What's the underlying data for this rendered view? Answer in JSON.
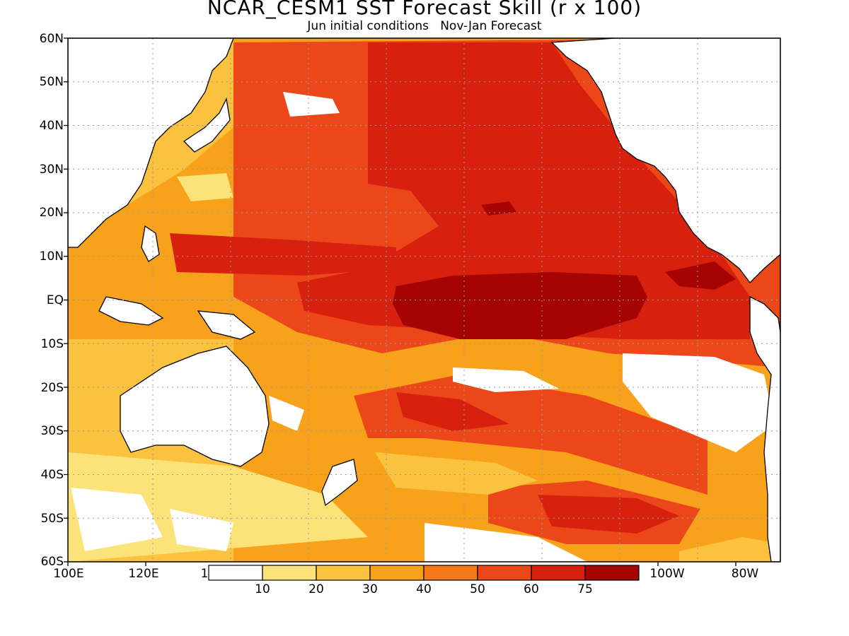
{
  "title": "NCAR_CESM1 SST Forecast Skill (r x 100)",
  "subtitle": "Jun initial conditions   Nov-Jan Forecast",
  "y_axis_labels": [
    "60N",
    "50N",
    "40N",
    "30N",
    "20N",
    "10N",
    "EQ",
    "10S",
    "20S",
    "30S",
    "40S",
    "50S",
    "60S"
  ],
  "x_axis_labels": [
    "100E",
    "120E",
    "1",
    "100W",
    "80W"
  ],
  "colorbar": {
    "ticks": [
      "10",
      "20",
      "30",
      "40",
      "50",
      "60",
      "75"
    ],
    "colors": [
      "#ffffff",
      "#fbe37a",
      "#fbc240",
      "#f8a21c",
      "#f5781a",
      "#ec4718",
      "#d7210e",
      "#a50403"
    ]
  },
  "map": {
    "region": "Pacific Ocean",
    "lon_range": [
      "100E",
      "70W"
    ],
    "lat_range": [
      "60S",
      "60N"
    ],
    "grid": "dotted"
  }
}
